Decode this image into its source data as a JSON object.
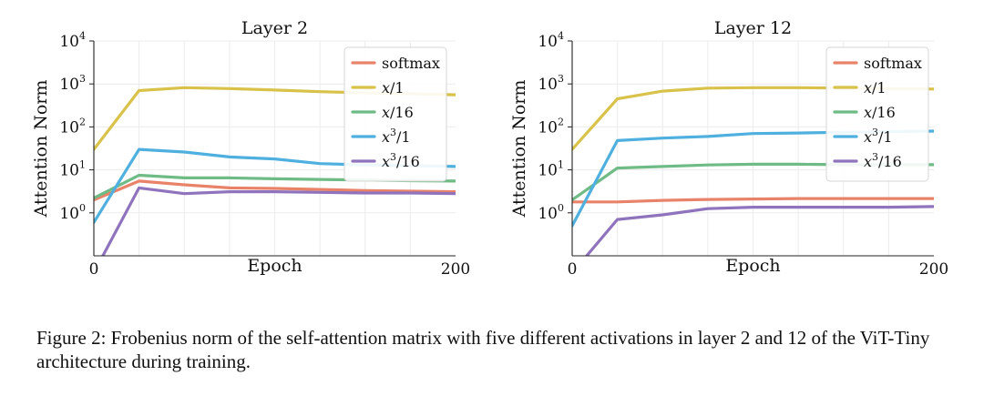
{
  "colors": {
    "softmax": "#e8836a",
    "x1": "#d8c24a",
    "x16": "#6fbb85",
    "x3_1": "#4fb0df",
    "x3_16": "#8f73bd"
  },
  "chart_data": [
    {
      "type": "line",
      "title": "Layer 2",
      "xlabel": "Epoch",
      "ylabel": "Attention Norm",
      "yscale": "log",
      "xlim": [
        0,
        200
      ],
      "ylim": [
        0.1,
        10000
      ],
      "x_tick_labels": [
        "0",
        "200"
      ],
      "y_ticks": [
        {
          "base": "10",
          "exp": "0",
          "value": 1
        },
        {
          "base": "10",
          "exp": "1",
          "value": 10
        },
        {
          "base": "10",
          "exp": "2",
          "value": 100
        },
        {
          "base": "10",
          "exp": "3",
          "value": 1000
        },
        {
          "base": "10",
          "exp": "4",
          "value": 10000
        }
      ],
      "grid": true,
      "legend_position": "top-right",
      "series": [
        {
          "name": "softmax",
          "x": [
            0,
            25,
            50,
            75,
            100,
            125,
            150,
            175,
            200
          ],
          "y": [
            2.0,
            5.5,
            4.5,
            3.8,
            3.7,
            3.5,
            3.3,
            3.2,
            3.1
          ]
        },
        {
          "name": "x/1",
          "x": [
            0,
            25,
            50,
            75,
            100,
            125,
            150,
            175,
            200
          ],
          "y": [
            30,
            700,
            820,
            780,
            720,
            660,
            620,
            590,
            560
          ]
        },
        {
          "name": "x/16",
          "x": [
            0,
            25,
            50,
            75,
            100,
            125,
            150,
            175,
            200
          ],
          "y": [
            2.2,
            7.5,
            6.5,
            6.5,
            6.2,
            6.0,
            5.8,
            5.6,
            5.5
          ]
        },
        {
          "name": "x³/1",
          "x": [
            0,
            25,
            50,
            75,
            100,
            125,
            150,
            175,
            200
          ],
          "y": [
            0.6,
            30,
            26,
            20,
            18,
            14,
            13,
            12.5,
            12
          ]
        },
        {
          "name": "x³/16",
          "x": [
            5,
            25,
            50,
            75,
            100,
            125,
            150,
            175,
            200
          ],
          "y": [
            0.1,
            3.8,
            2.8,
            3.1,
            3.1,
            3.0,
            2.9,
            2.9,
            2.8
          ]
        }
      ]
    },
    {
      "type": "line",
      "title": "Layer 12",
      "xlabel": "Epoch",
      "ylabel": "Attention Norm",
      "yscale": "log",
      "xlim": [
        0,
        200
      ],
      "ylim": [
        0.1,
        10000
      ],
      "x_tick_labels": [
        "0",
        "200"
      ],
      "y_ticks": [
        {
          "base": "10",
          "exp": "0",
          "value": 1
        },
        {
          "base": "10",
          "exp": "1",
          "value": 10
        },
        {
          "base": "10",
          "exp": "2",
          "value": 100
        },
        {
          "base": "10",
          "exp": "3",
          "value": 1000
        },
        {
          "base": "10",
          "exp": "4",
          "value": 10000
        }
      ],
      "grid": true,
      "legend_position": "top-right",
      "series": [
        {
          "name": "softmax",
          "x": [
            0,
            25,
            50,
            75,
            100,
            125,
            150,
            175,
            200
          ],
          "y": [
            1.8,
            1.8,
            1.95,
            2.05,
            2.1,
            2.15,
            2.15,
            2.15,
            2.15
          ]
        },
        {
          "name": "x/1",
          "x": [
            0,
            25,
            50,
            75,
            100,
            125,
            150,
            175,
            200
          ],
          "y": [
            30,
            450,
            680,
            800,
            820,
            820,
            800,
            780,
            760
          ]
        },
        {
          "name": "x/16",
          "x": [
            0,
            25,
            50,
            75,
            100,
            125,
            150,
            175,
            200
          ],
          "y": [
            2.0,
            11,
            12,
            13,
            13.5,
            13.5,
            13.2,
            13.2,
            13.2
          ]
        },
        {
          "name": "x³/1",
          "x": [
            0,
            25,
            50,
            75,
            100,
            125,
            150,
            175,
            200
          ],
          "y": [
            0.5,
            48,
            55,
            60,
            70,
            72,
            75,
            78,
            80
          ]
        },
        {
          "name": "x³/16",
          "x": [
            8,
            25,
            50,
            75,
            100,
            125,
            150,
            175,
            200
          ],
          "y": [
            0.1,
            0.7,
            0.9,
            1.25,
            1.35,
            1.35,
            1.35,
            1.35,
            1.4
          ]
        }
      ]
    }
  ],
  "legend_labels": [
    {
      "kind": "plain",
      "text": "softmax"
    },
    {
      "kind": "frac",
      "base": "x",
      "sup": "",
      "den": "/1"
    },
    {
      "kind": "frac",
      "base": "x",
      "sup": "",
      "den": "/16"
    },
    {
      "kind": "frac",
      "base": "x",
      "sup": "3",
      "den": "/1"
    },
    {
      "kind": "frac",
      "base": "x",
      "sup": "3",
      "den": "/16"
    }
  ],
  "caption": "Figure 2: Frobenius norm of the self-attention matrix with five different activations in layer 2 and 12 of the ViT-Tiny architecture during training."
}
